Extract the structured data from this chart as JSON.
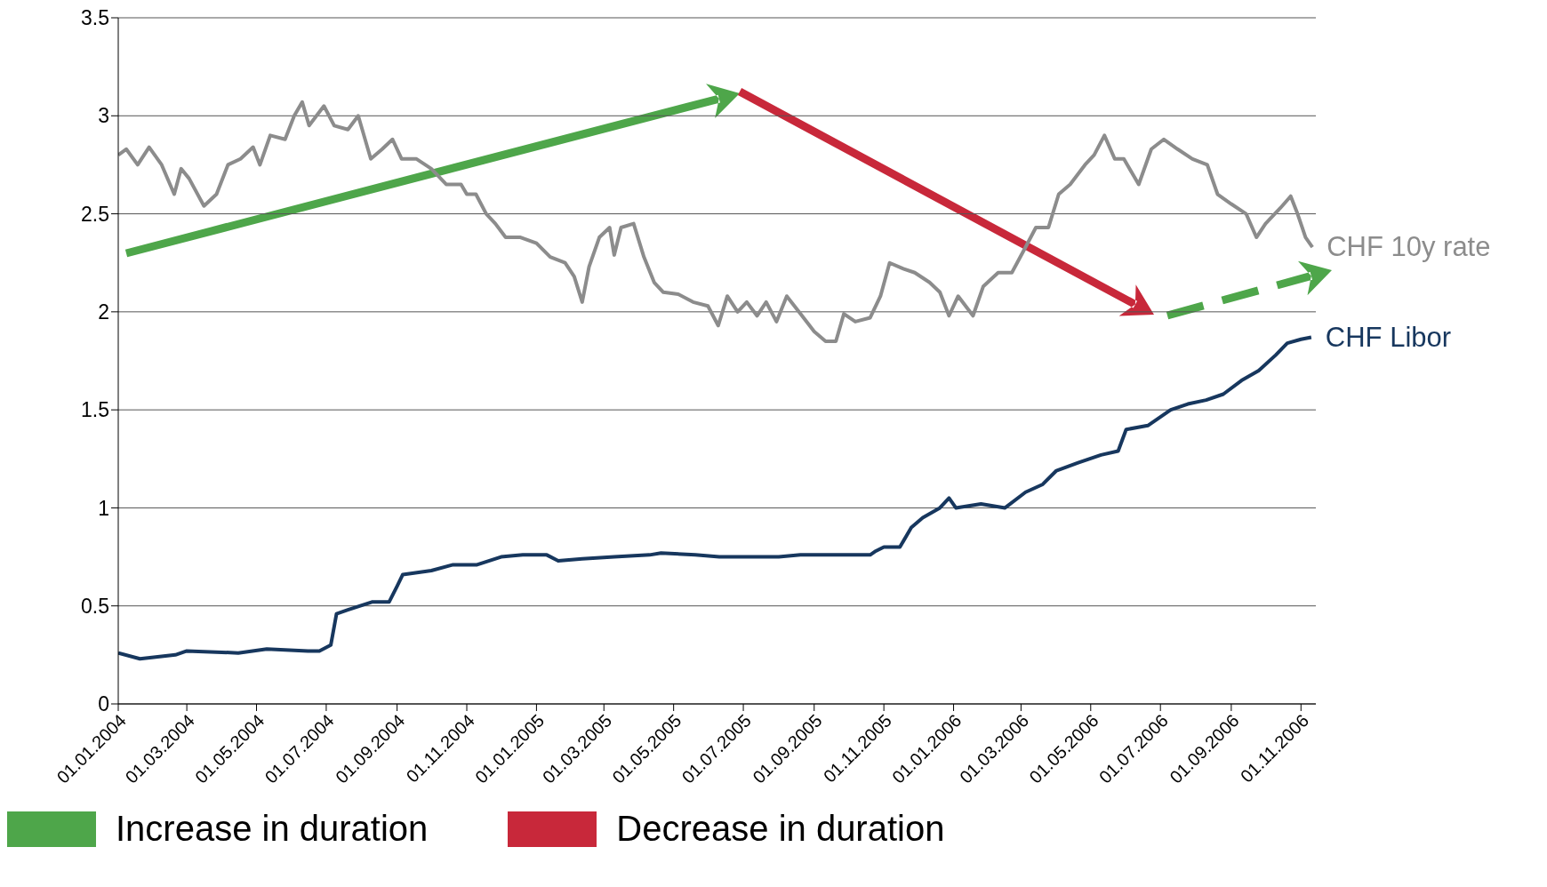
{
  "chart_data": {
    "type": "line",
    "legend": false,
    "grid": "y",
    "marker": "none",
    "line_style": "solid",
    "xlim": [
      "2004-01-01",
      "2006-11-14"
    ],
    "xticks": [
      {
        "value": "2004-01-01",
        "label": "01.01.2004"
      },
      {
        "value": "2004-03-01",
        "label": "01.03.2004"
      },
      {
        "value": "2004-05-01",
        "label": "01.05.2004"
      },
      {
        "value": "2004-07-01",
        "label": "01.07.2004"
      },
      {
        "value": "2004-09-01",
        "label": "01.09.2004"
      },
      {
        "value": "2004-11-01",
        "label": "01.11.2004"
      },
      {
        "value": "2005-01-01",
        "label": "01.01.2005"
      },
      {
        "value": "2005-03-01",
        "label": "01.03.2005"
      },
      {
        "value": "2005-05-01",
        "label": "01.05.2005"
      },
      {
        "value": "2005-07-01",
        "label": "01.07.2005"
      },
      {
        "value": "2005-09-01",
        "label": "01.09.2005"
      },
      {
        "value": "2005-11-01",
        "label": "01.11.2005"
      },
      {
        "value": "2006-01-01",
        "label": "01.01.2006"
      },
      {
        "value": "2006-03-01",
        "label": "01.03.2006"
      },
      {
        "value": "2006-05-01",
        "label": "01.05.2006"
      },
      {
        "value": "2006-07-01",
        "label": "01.07.2006"
      },
      {
        "value": "2006-09-01",
        "label": "01.09.2006"
      },
      {
        "value": "2006-11-01",
        "label": "01.11.2006"
      }
    ],
    "ylim": [
      0,
      3.5
    ],
    "yticks": [
      0,
      0.5,
      1,
      1.5,
      2,
      2.5,
      3,
      3.5
    ],
    "annotations": [
      "Increase in duration",
      "Decrease in duration"
    ],
    "series": [
      {
        "name": "CHF 10y rate",
        "color": "#8c8c8c",
        "x": [
          "2004-01-01",
          "2004-01-08",
          "2004-01-18",
          "2004-01-28",
          "2004-02-08",
          "2004-02-19",
          "2004-02-25",
          "2004-03-03",
          "2004-03-16",
          "2004-03-27",
          "2004-04-06",
          "2004-04-17",
          "2004-04-28",
          "2004-05-04",
          "2004-05-13",
          "2004-05-26",
          "2004-06-03",
          "2004-06-10",
          "2004-06-16",
          "2004-06-29",
          "2004-07-08",
          "2004-07-20",
          "2004-07-29",
          "2004-08-09",
          "2004-08-19",
          "2004-08-28",
          "2004-09-05",
          "2004-09-18",
          "2004-10-01",
          "2004-10-14",
          "2004-10-27",
          "2004-11-01",
          "2004-11-09",
          "2004-11-18",
          "2004-11-26",
          "2004-12-05",
          "2004-12-18",
          "2005-01-01",
          "2005-01-13",
          "2005-01-26",
          "2005-02-03",
          "2005-02-10",
          "2005-02-16",
          "2005-02-25",
          "2005-03-06",
          "2005-03-10",
          "2005-03-16",
          "2005-03-27",
          "2005-04-05",
          "2005-04-14",
          "2005-04-22",
          "2005-05-05",
          "2005-05-18",
          "2005-05-31",
          "2005-06-09",
          "2005-06-17",
          "2005-06-26",
          "2005-07-04",
          "2005-07-13",
          "2005-07-21",
          "2005-07-30",
          "2005-08-08",
          "2005-08-20",
          "2005-09-01",
          "2005-09-11",
          "2005-09-20",
          "2005-09-27",
          "2005-10-07",
          "2005-10-20",
          "2005-10-29",
          "2005-11-06",
          "2005-11-18",
          "2005-11-28",
          "2005-12-11",
          "2005-12-20",
          "2005-12-28",
          "2006-01-05",
          "2006-01-18",
          "2006-01-27",
          "2006-02-09",
          "2006-02-21",
          "2006-03-05",
          "2006-03-14",
          "2006-03-25",
          "2006-04-03",
          "2006-04-13",
          "2006-04-26",
          "2006-05-04",
          "2006-05-13",
          "2006-05-22",
          "2006-05-30",
          "2006-06-12",
          "2006-06-23",
          "2006-07-04",
          "2006-07-16",
          "2006-07-29",
          "2006-08-11",
          "2006-08-20",
          "2006-09-01",
          "2006-09-14",
          "2006-09-23",
          "2006-10-01",
          "2006-10-14",
          "2006-10-23",
          "2006-10-29",
          "2006-11-05",
          "2006-11-11"
        ],
        "values": [
          2.8,
          2.83,
          2.75,
          2.84,
          2.75,
          2.6,
          2.73,
          2.68,
          2.54,
          2.6,
          2.75,
          2.78,
          2.84,
          2.75,
          2.9,
          2.88,
          3.0,
          3.07,
          2.95,
          3.05,
          2.95,
          2.93,
          3.0,
          2.78,
          2.83,
          2.88,
          2.78,
          2.78,
          2.73,
          2.65,
          2.65,
          2.6,
          2.6,
          2.5,
          2.45,
          2.38,
          2.38,
          2.35,
          2.28,
          2.25,
          2.18,
          2.05,
          2.23,
          2.38,
          2.43,
          2.29,
          2.43,
          2.45,
          2.28,
          2.15,
          2.1,
          2.09,
          2.05,
          2.03,
          1.93,
          2.08,
          2.0,
          2.05,
          1.98,
          2.05,
          1.95,
          2.08,
          1.99,
          1.9,
          1.85,
          1.85,
          1.99,
          1.95,
          1.97,
          2.08,
          2.25,
          2.22,
          2.2,
          2.15,
          2.1,
          1.98,
          2.08,
          1.98,
          2.13,
          2.2,
          2.2,
          2.33,
          2.43,
          2.43,
          2.6,
          2.65,
          2.75,
          2.8,
          2.9,
          2.78,
          2.78,
          2.65,
          2.83,
          2.88,
          2.83,
          2.78,
          2.75,
          2.6,
          2.55,
          2.5,
          2.38,
          2.45,
          2.53,
          2.59,
          2.5,
          2.38,
          2.33
        ]
      },
      {
        "name": "CHF Libor",
        "color": "#17375e",
        "x": [
          "2004-01-01",
          "2004-01-20",
          "2004-02-20",
          "2004-03-01",
          "2004-04-15",
          "2004-05-10",
          "2004-06-15",
          "2004-06-25",
          "2004-07-05",
          "2004-07-10",
          "2004-07-20",
          "2004-08-10",
          "2004-08-25",
          "2004-09-01",
          "2004-09-06",
          "2004-10-01",
          "2004-10-20",
          "2004-11-10",
          "2004-12-01",
          "2004-12-20",
          "2005-01-10",
          "2005-01-20",
          "2005-02-10",
          "2005-03-10",
          "2005-04-10",
          "2005-04-20",
          "2005-05-20",
          "2005-06-10",
          "2005-08-01",
          "2005-08-20",
          "2005-10-20",
          "2005-10-25",
          "2005-11-01",
          "2005-11-15",
          "2005-11-25",
          "2005-12-05",
          "2005-12-20",
          "2005-12-28",
          "2006-01-03",
          "2006-01-25",
          "2006-02-15",
          "2006-03-05",
          "2006-03-20",
          "2006-04-01",
          "2006-04-20",
          "2006-05-10",
          "2006-05-25",
          "2006-06-01",
          "2006-06-20",
          "2006-07-10",
          "2006-07-25",
          "2006-08-10",
          "2006-08-25",
          "2006-09-10",
          "2006-09-25",
          "2006-10-10",
          "2006-10-20",
          "2006-11-01",
          "2006-11-10"
        ],
        "values": [
          0.26,
          0.23,
          0.25,
          0.27,
          0.26,
          0.28,
          0.27,
          0.27,
          0.3,
          0.46,
          0.48,
          0.52,
          0.52,
          0.6,
          0.66,
          0.68,
          0.71,
          0.71,
          0.75,
          0.76,
          0.76,
          0.73,
          0.74,
          0.75,
          0.76,
          0.77,
          0.76,
          0.75,
          0.75,
          0.76,
          0.76,
          0.78,
          0.8,
          0.8,
          0.9,
          0.95,
          1.0,
          1.05,
          1.0,
          1.02,
          1.0,
          1.08,
          1.12,
          1.19,
          1.23,
          1.27,
          1.29,
          1.4,
          1.42,
          1.5,
          1.53,
          1.55,
          1.58,
          1.65,
          1.7,
          1.78,
          1.84,
          1.86,
          1.87
        ]
      }
    ]
  }
}
